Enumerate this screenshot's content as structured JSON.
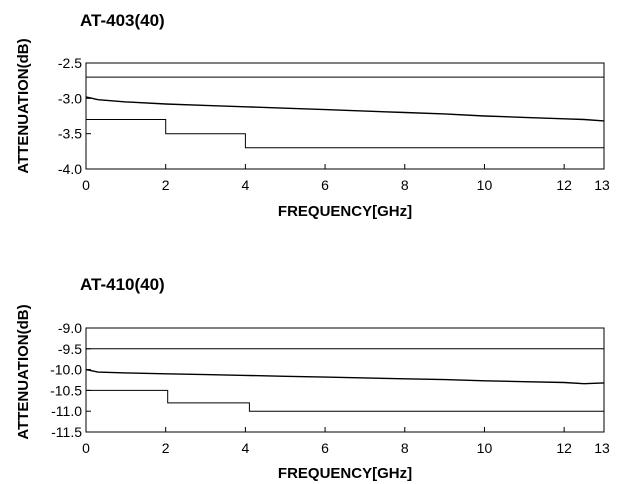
{
  "chart_data": [
    {
      "type": "line",
      "title": "AT-403(40)",
      "xlabel": "FREQUENCY[GHz]",
      "ylabel": "ATTENUATION(dB)",
      "xlim": [
        0,
        13
      ],
      "ylim": [
        -4.0,
        -2.5
      ],
      "xticks": [
        0,
        2,
        4,
        6,
        8,
        10,
        12,
        13
      ],
      "yticks": [
        -2.5,
        -3.0,
        -3.5,
        -4.0
      ],
      "ytick_labels": [
        "-2.5",
        "-3.0",
        "-3.5",
        "-4.0"
      ],
      "grid": false,
      "series": [
        {
          "role": "upper-limit",
          "x": [
            0,
            13
          ],
          "y": [
            -2.7,
            -2.7
          ]
        },
        {
          "role": "measured",
          "x": [
            0,
            0.3,
            1,
            2,
            3,
            4,
            5,
            6,
            7,
            8,
            9,
            10,
            11,
            12,
            12.5,
            13
          ],
          "y": [
            -2.98,
            -3.02,
            -3.05,
            -3.08,
            -3.1,
            -3.12,
            -3.14,
            -3.16,
            -3.18,
            -3.2,
            -3.22,
            -3.25,
            -3.27,
            -3.29,
            -3.3,
            -3.32
          ]
        },
        {
          "role": "lower-limit",
          "x": [
            0,
            2,
            2,
            4,
            4,
            13
          ],
          "y": [
            -3.3,
            -3.3,
            -3.5,
            -3.5,
            -3.7,
            -3.7
          ]
        }
      ]
    },
    {
      "type": "line",
      "title": "AT-410(40)",
      "xlabel": "FREQUENCY[GHz]",
      "ylabel": "ATTENUATION(dB)",
      "xlim": [
        0,
        13
      ],
      "ylim": [
        -11.5,
        -9.0
      ],
      "xticks": [
        0,
        2,
        4,
        6,
        8,
        10,
        12,
        13
      ],
      "yticks": [
        -9.0,
        -9.5,
        -10.0,
        -10.5,
        -11.0,
        -11.5
      ],
      "ytick_labels": [
        "-9.0",
        "-9.5",
        "-10.0",
        "-10.5",
        "-11.0",
        "-11.5"
      ],
      "grid": false,
      "series": [
        {
          "role": "upper-limit",
          "x": [
            0,
            13
          ],
          "y": [
            -9.5,
            -9.5
          ]
        },
        {
          "role": "measured",
          "x": [
            0,
            0.3,
            1,
            2,
            3,
            4,
            5,
            6,
            7,
            8,
            9,
            10,
            11,
            12,
            12.5,
            13
          ],
          "y": [
            -10.0,
            -10.06,
            -10.08,
            -10.1,
            -10.12,
            -10.14,
            -10.16,
            -10.18,
            -10.2,
            -10.22,
            -10.24,
            -10.27,
            -10.29,
            -10.31,
            -10.34,
            -10.32
          ]
        },
        {
          "role": "lower-limit",
          "x": [
            0,
            2.05,
            2.05,
            4.1,
            4.1,
            13
          ],
          "y": [
            -10.5,
            -10.5,
            -10.8,
            -10.8,
            -11.0,
            -11.0
          ]
        }
      ]
    }
  ]
}
